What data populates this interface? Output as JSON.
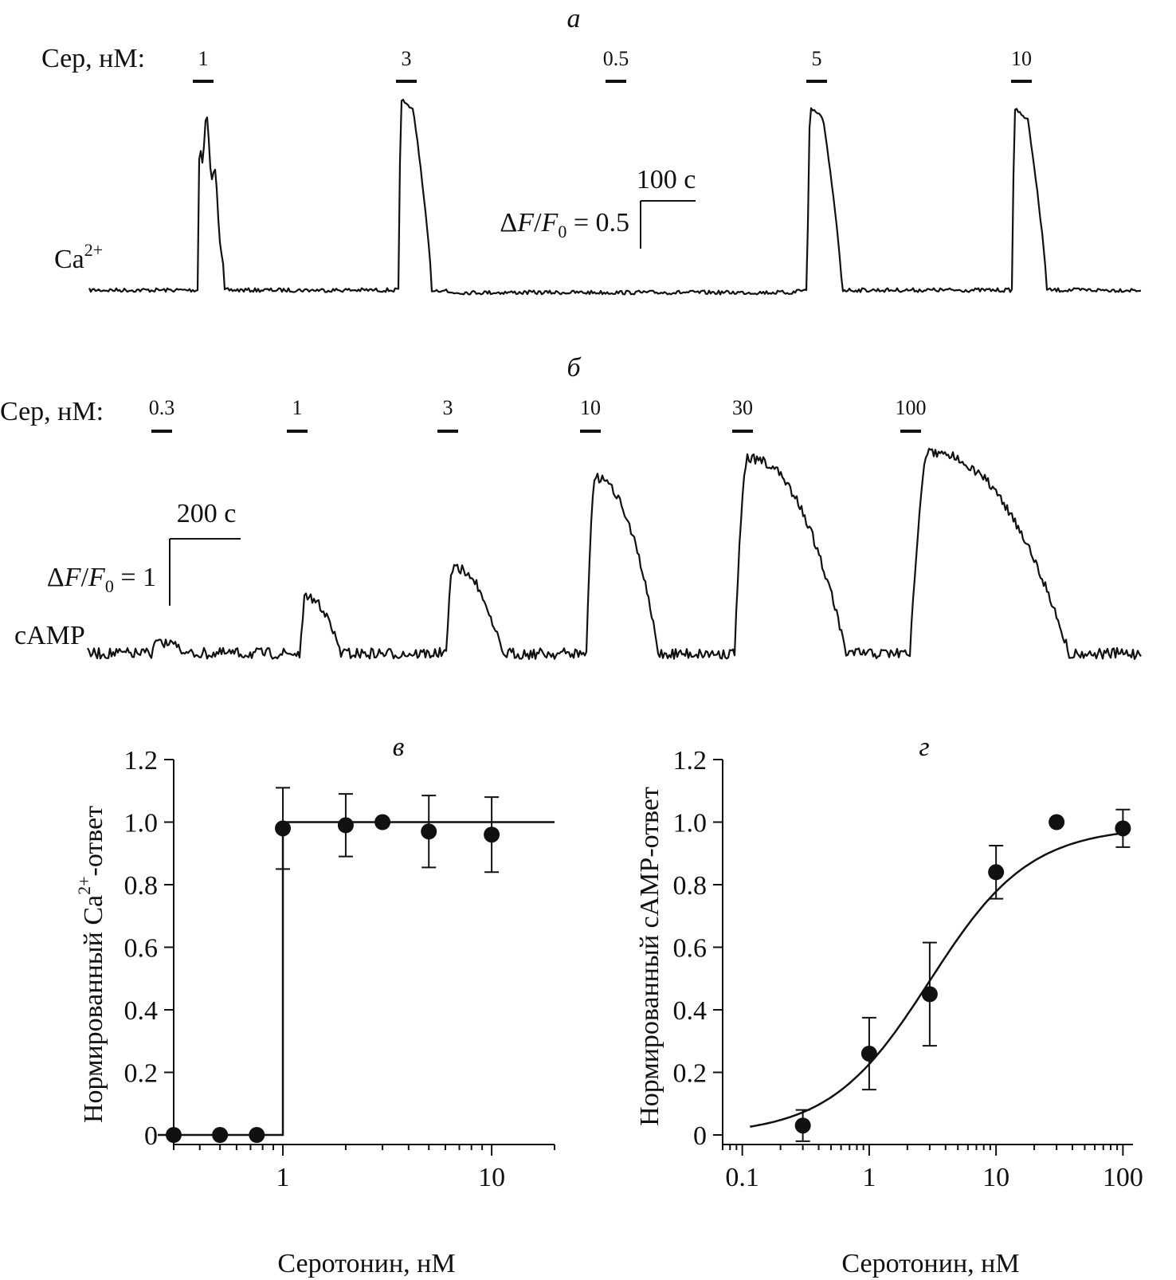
{
  "panel_a": {
    "letter": "а",
    "stim_title": "Сер, нМ:",
    "stim_labels": [
      "1",
      "3",
      "0.5",
      "5",
      "10"
    ],
    "trace_label": "Ca",
    "trace_label_sup": "2+",
    "scale_time": "100 с",
    "scale_amp": "ΔF/F0 = 0.5",
    "color": "#111111"
  },
  "panel_b": {
    "letter": "б",
    "stim_title": "Сер, нМ:",
    "stim_labels": [
      "0.3",
      "1",
      "3",
      "10",
      "30",
      "100"
    ],
    "trace_label": "cAMP",
    "scale_time": "200 с",
    "scale_amp": "ΔF/F0 = 1",
    "color": "#111111"
  },
  "chart_data": [
    {
      "type": "scatter",
      "panel": "в",
      "xlabel": "Серотонин, нМ",
      "ylabel": "Нормированный Ca2+-ответ",
      "x_scale": "log",
      "xlim": [
        0.3,
        20
      ],
      "ylim": [
        0,
        1.2
      ],
      "xticks": [
        "1",
        "10"
      ],
      "yticks": [
        "0",
        "0.2",
        "0.4",
        "0.6",
        "0.8",
        "1.0",
        "1.2"
      ],
      "x": [
        0.3,
        0.5,
        0.75,
        1,
        2,
        3,
        5,
        10
      ],
      "y": [
        0.0,
        0.0,
        0.0,
        0.98,
        0.99,
        1.0,
        0.97,
        0.96
      ],
      "yerr": [
        0,
        0,
        0,
        0.13,
        0.1,
        0,
        0.115,
        0.12
      ],
      "fit": "step at 1 nM from 0 to 1.0"
    },
    {
      "type": "scatter",
      "panel": "г",
      "xlabel": "Серотонин, нМ",
      "ylabel": "Нормированный cAMP-ответ",
      "x_scale": "log",
      "xlim": [
        0.07,
        120
      ],
      "ylim": [
        0,
        1.2
      ],
      "xticks": [
        "0.1",
        "1",
        "10",
        "100"
      ],
      "yticks": [
        "0",
        "0.2",
        "0.4",
        "0.6",
        "0.8",
        "1.0",
        "1.2"
      ],
      "x": [
        0.3,
        1,
        3,
        10,
        30,
        100
      ],
      "y": [
        0.03,
        0.26,
        0.45,
        0.84,
        1.0,
        0.98
      ],
      "yerr": [
        0.05,
        0.115,
        0.165,
        0.085,
        0,
        0.06
      ],
      "fit": "sigmoid, EC50 ≈ 3 nM, max ≈ 0.98"
    }
  ]
}
